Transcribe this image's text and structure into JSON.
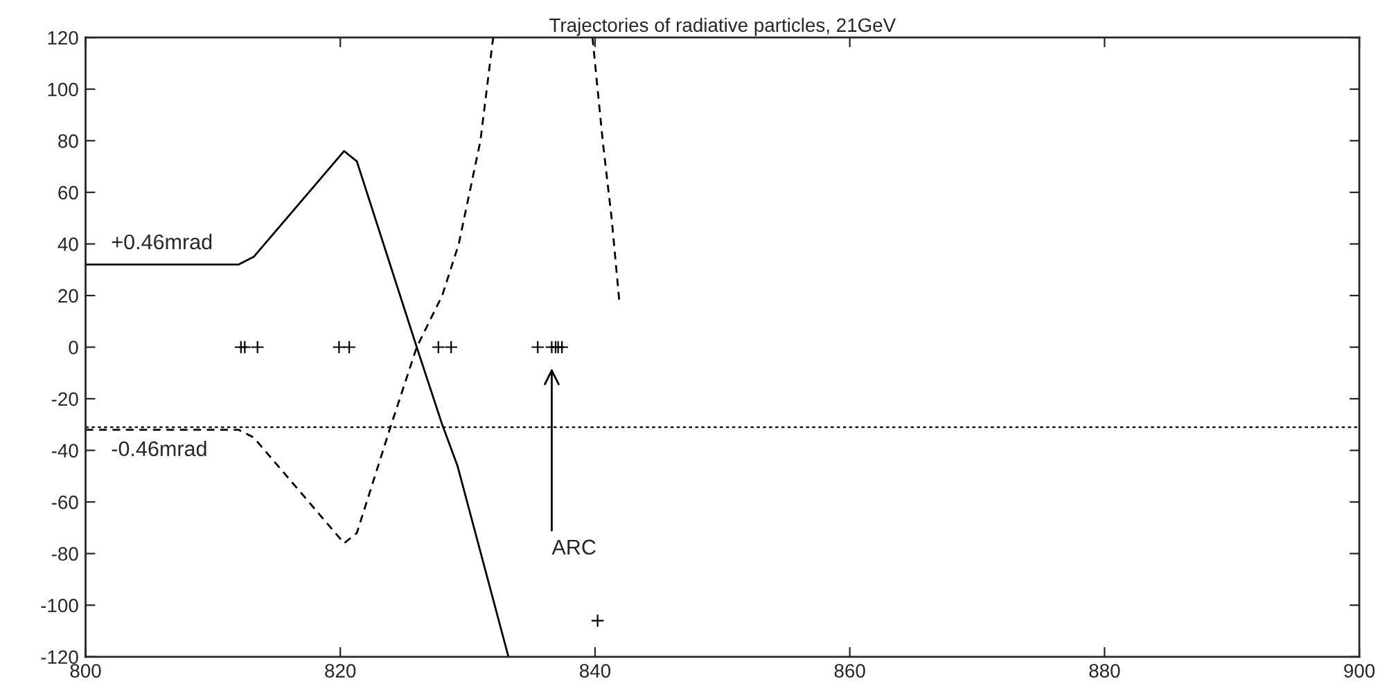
{
  "chart_data": {
    "type": "line",
    "title": "Trajectories of radiative particles, 21GeV",
    "xlim": [
      800,
      900
    ],
    "xticks": [
      800,
      820,
      840,
      860,
      880,
      900
    ],
    "ylim": [
      -120,
      120
    ],
    "yticks": [
      -120,
      -100,
      -80,
      -60,
      -40,
      -20,
      0,
      20,
      40,
      60,
      80,
      100,
      120
    ],
    "grid": false,
    "legend": false,
    "series": [
      {
        "color": "#000000",
        "line_style": "solid",
        "marker": "none",
        "x": [
          800,
          812,
          813.2,
          820.3,
          821.3,
          826,
          828,
          829.2,
          833.2
        ],
        "values": [
          32,
          32,
          35,
          76,
          72,
          0,
          -30,
          -46,
          -120
        ]
      },
      {
        "color": "#000000",
        "line_style": "dashed",
        "marker": "none",
        "x": [
          800,
          812,
          813.2,
          820.3,
          821.3,
          824,
          826,
          828,
          829.3,
          831,
          832,
          836,
          839.8,
          840.6,
          841.3,
          841.9
        ],
        "values": [
          -32,
          -32,
          -35,
          -76,
          -72,
          -30,
          0,
          20,
          40,
          80,
          120,
          null,
          120,
          80,
          50,
          18
        ]
      },
      {
        "type": "scatter",
        "color": "#000000",
        "marker": "cross",
        "x": [
          812.2,
          812.5,
          813.5,
          819.9,
          820.7,
          827.7,
          828.7,
          835.5,
          836.6,
          836.9,
          837.1,
          837.4,
          840.2
        ],
        "values": [
          0,
          0,
          0,
          0,
          0,
          0,
          0,
          0,
          0,
          0,
          0,
          0,
          -106
        ]
      }
    ],
    "ref_lines": [
      {
        "axis": "y",
        "value": -31,
        "label": null,
        "color": "#000000",
        "line_style": "dotted"
      }
    ],
    "annotations": [
      "+0.46mrad",
      "-0.46mrad",
      "ARC"
    ]
  }
}
